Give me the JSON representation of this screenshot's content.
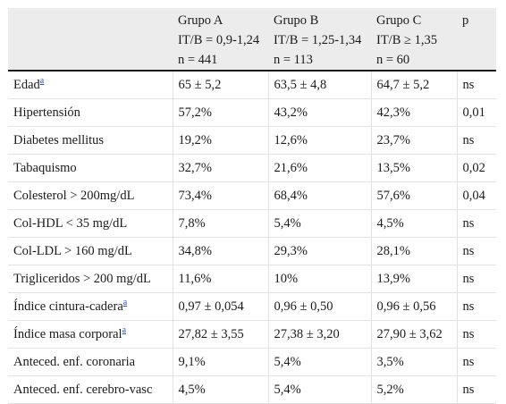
{
  "header": {
    "columns": [
      {
        "lines": [
          "",
          "",
          ""
        ]
      },
      {
        "lines": [
          "Grupo A",
          "IT/B = 0,9-1,24",
          "n = 441"
        ]
      },
      {
        "lines": [
          "Grupo B",
          "IT/B = 1,25-1,34",
          "n = 113"
        ]
      },
      {
        "lines": [
          "Grupo C",
          "IT/B ≥ 1,35",
          "n = 60"
        ]
      },
      {
        "lines": [
          "p",
          "",
          ""
        ]
      }
    ]
  },
  "rows": [
    {
      "label": "Edad",
      "note": "a",
      "a": "65 ± 5,2",
      "b": "63,5 ± 4,8",
      "c": "64,7 ± 5,2",
      "p": "ns"
    },
    {
      "label": "Hipertensión",
      "note": "",
      "a": "57,2%",
      "b": "43,2%",
      "c": "42,3%",
      "p": "0,01"
    },
    {
      "label": "Diabetes mellitus",
      "note": "",
      "a": "19,2%",
      "b": "12,6%",
      "c": "23,7%",
      "p": "ns"
    },
    {
      "label": "Tabaquismo",
      "note": "",
      "a": "32,7%",
      "b": "21,6%",
      "c": "13,5%",
      "p": "0,02"
    },
    {
      "label": "Colesterol  >  200mg/dL",
      "note": "",
      "a": "73,4%",
      "b": "68,4%",
      "c": "57,6%",
      "p": "0,04"
    },
    {
      "label": "Col-HDL < 35 mg/dL",
      "note": "",
      "a": "7,8%",
      "b": "5,4%",
      "c": "4,5%",
      "p": "ns"
    },
    {
      "label": "Col-LDL > 160 mg/dL",
      "note": "",
      "a": "34,8%",
      "b": "29,3%",
      "c": "28,1%",
      "p": "ns"
    },
    {
      "label": "Trigliceridos > 200 mg/dL",
      "note": "",
      "a": "11,6%",
      "b": "10%",
      "c": "13,9%",
      "p": "ns"
    },
    {
      "label": "Índice cintura-cadera",
      "note": "a",
      "a": "0,97 ± 0,054",
      "b": "0,96 ± 0,50",
      "c": "0,96 ± 0,56",
      "p": "ns"
    },
    {
      "label": "Índice masa corporal",
      "note": "a",
      "a": "27,82 ± 3,55",
      "b": "27,38 ± 3,20",
      "c": "27,90 ± 3,62",
      "p": "ns"
    },
    {
      "label": "Anteced. enf. coronaria",
      "note": "",
      "a": "9,1%",
      "b": "5,4%",
      "c": "3,5%",
      "p": "ns"
    },
    {
      "label": "Anteced. enf. cerebro-vasc",
      "note": "",
      "a": "4,5%",
      "b": "5,4%",
      "c": "5,2%",
      "p": "ns"
    }
  ]
}
